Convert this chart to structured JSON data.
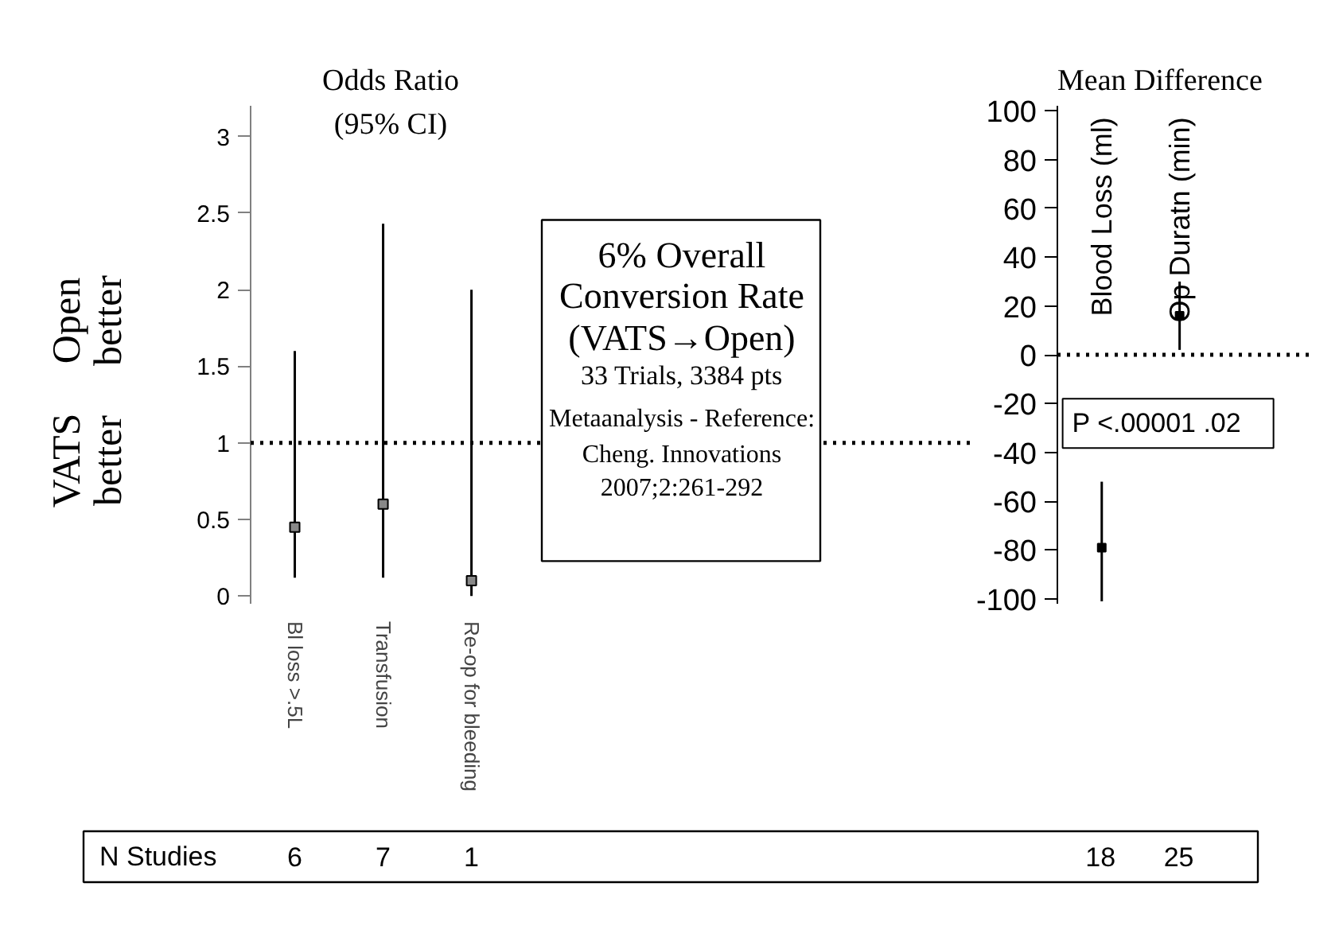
{
  "chart_data": [
    {
      "type": "scatter",
      "title": "Odds Ratio",
      "subtitle": "(95% CI)",
      "categories": [
        "Bl loss >.5L",
        "Transfusion",
        "Re-op for bleeding"
      ],
      "series": [
        {
          "color": "#000000",
          "values": [
            0.45,
            0.6,
            0.1
          ],
          "errors": [
            [
              0.12,
              1.6
            ],
            [
              0.12,
              2.43
            ],
            [
              0,
              2.0
            ]
          ]
        }
      ],
      "marker": "square",
      "ylim": [
        -0.05,
        3.2
      ],
      "yticks": [
        0,
        0.5,
        1,
        1.5,
        2,
        2.5,
        3
      ],
      "ref_lines": [
        {
          "axis": "y",
          "value": 1,
          "line_style": "dotted"
        }
      ],
      "annotations": [
        "6% Overall",
        "Conversion Rate",
        "(VATS→Open)",
        "33 Trials, 3384 pts",
        "Metaanalysis - Reference:",
        "Cheng. Innovations",
        "2007;2:261-292",
        "Open better",
        "VATS better",
        "N Studies",
        "6",
        "7",
        "1"
      ]
    },
    {
      "type": "scatter",
      "title": "Mean Difference",
      "categories": [
        "Blood Loss (ml)",
        "Op Duratn (min)"
      ],
      "series": [
        {
          "color": "#000000",
          "values": [
            -79,
            16
          ],
          "errors": [
            [
              -101,
              -52
            ],
            [
              2,
              30
            ]
          ]
        }
      ],
      "marker": "square",
      "ylim": [
        -102,
        102
      ],
      "yticks": [
        -100,
        -80,
        -60,
        -40,
        -20,
        0,
        20,
        40,
        60,
        80,
        100
      ],
      "ref_lines": [
        {
          "axis": "y",
          "value": 0,
          "line_style": "dotted"
        }
      ],
      "annotations": [
        "P  <.00001   .02",
        "18",
        "25"
      ]
    }
  ]
}
